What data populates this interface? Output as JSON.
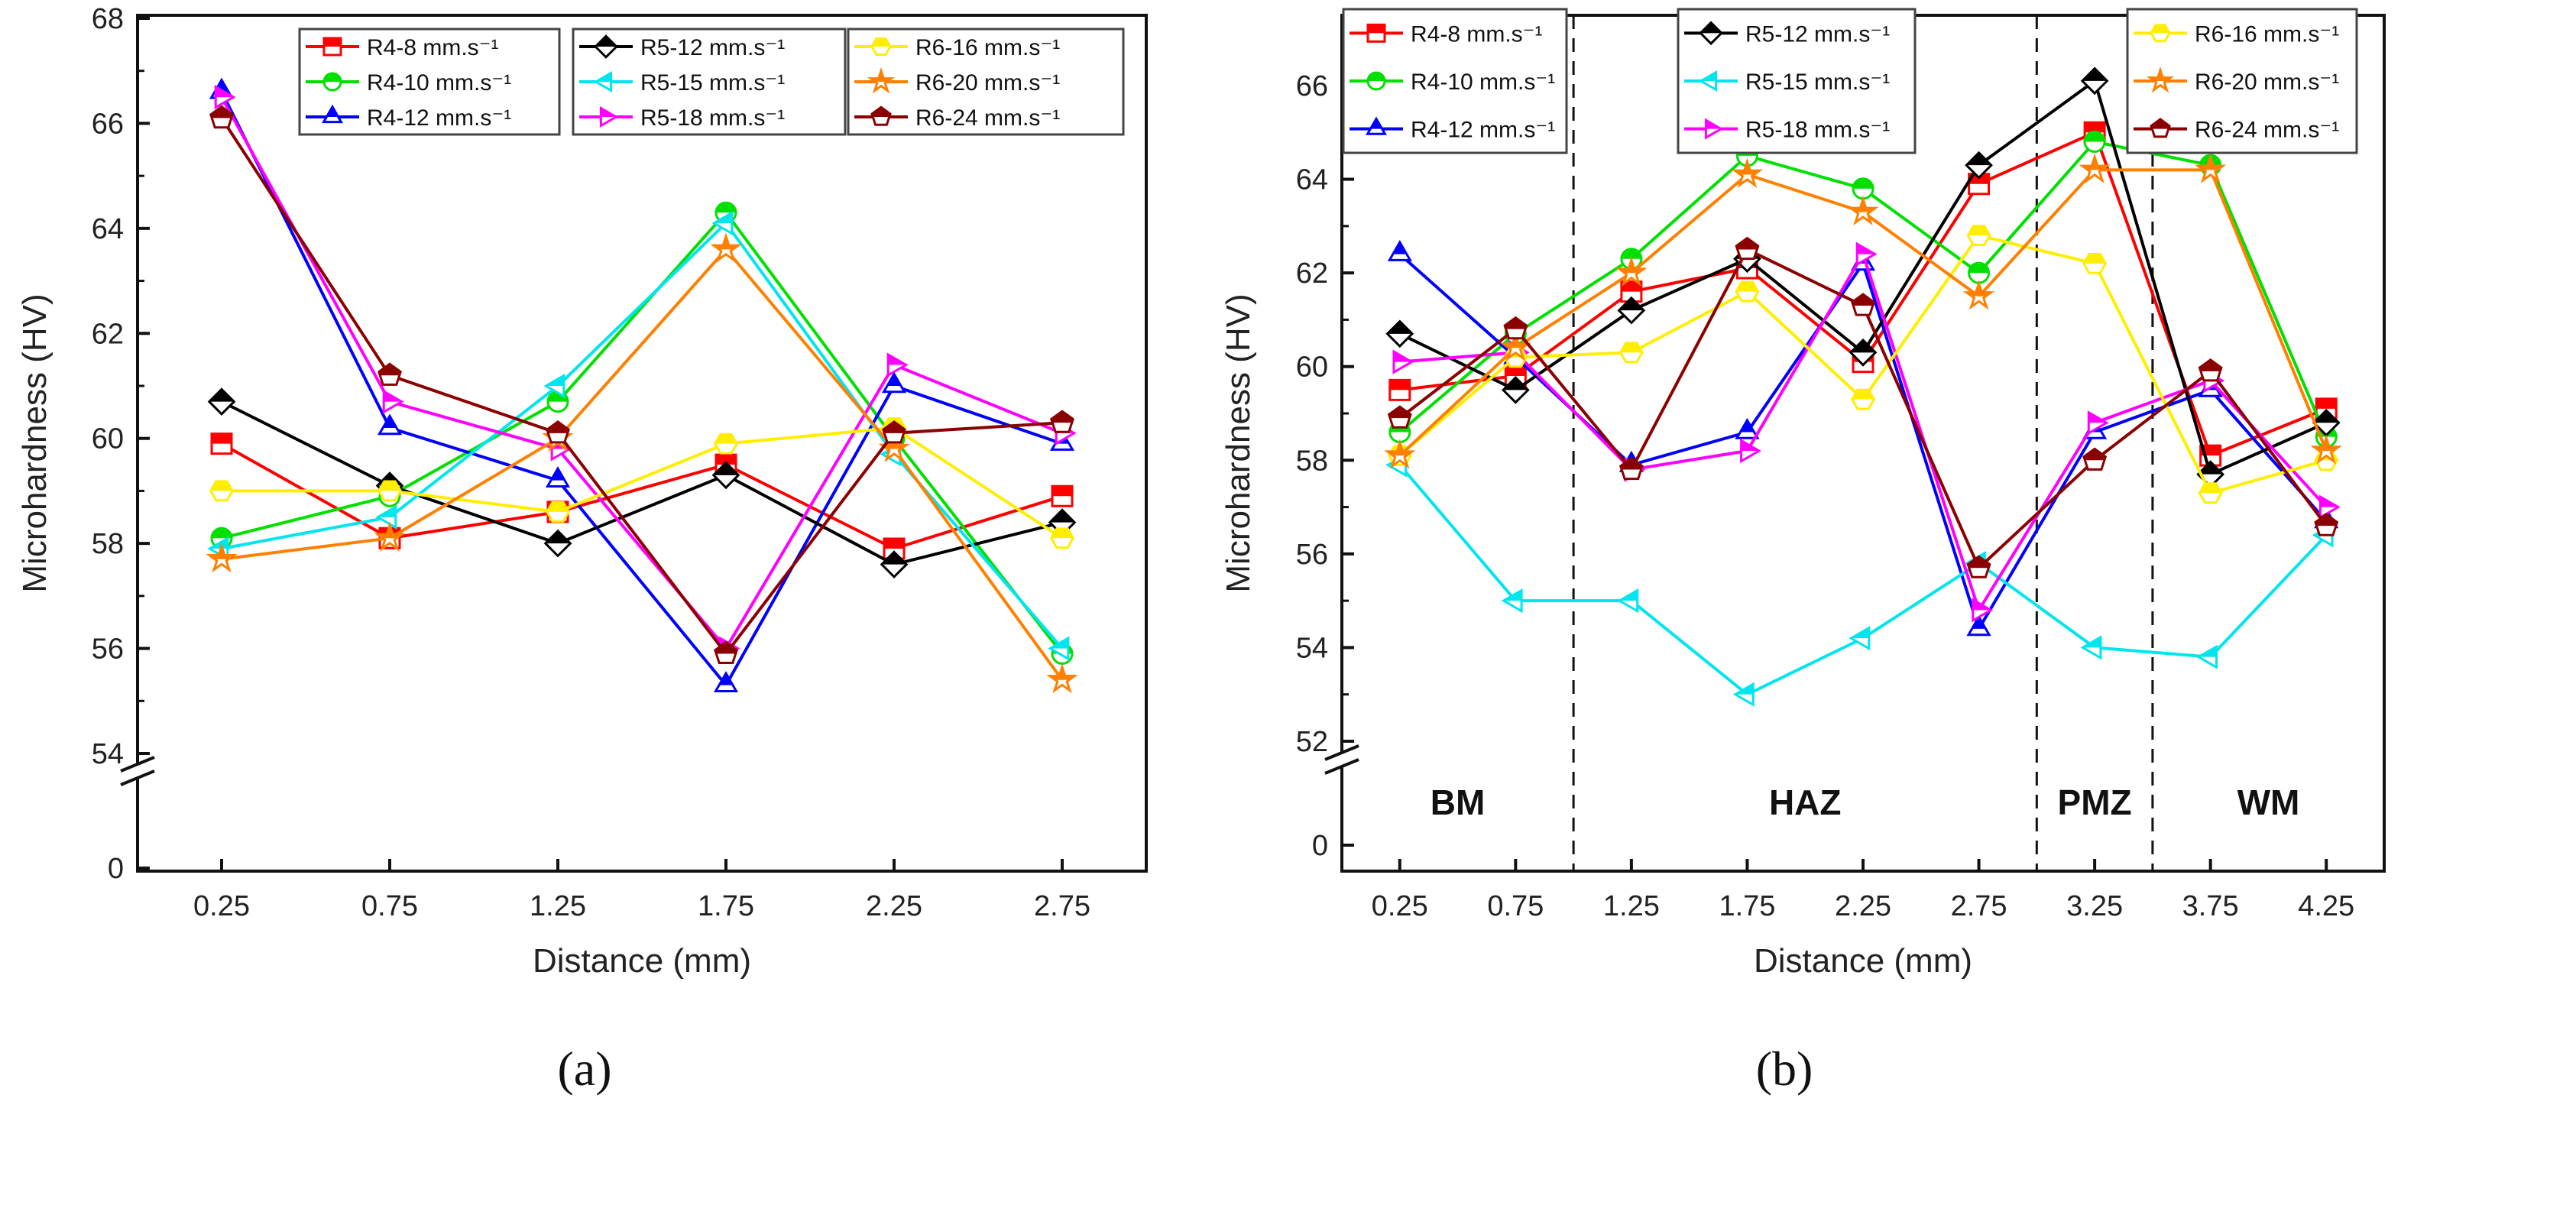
{
  "chart_data": [
    {
      "type": "line",
      "caption": "(a)",
      "xlabel": "Distance (mm)",
      "ylabel": "Microhardness (HV)",
      "x": [
        0.25,
        0.75,
        1.25,
        1.75,
        2.25,
        2.75
      ],
      "xticks": [
        "0.25",
        "0.75",
        "1.25",
        "1.75",
        "2.25",
        "2.75"
      ],
      "yticks": [
        0,
        54,
        56,
        58,
        60,
        62,
        64,
        66,
        68
      ],
      "ylim": [
        54,
        68
      ],
      "axis_break": [
        0,
        54
      ],
      "series": [
        {
          "name": "R4-8 mm.s⁻¹",
          "color": "#ff0000",
          "marker": "square",
          "values": [
            59.9,
            58.1,
            58.6,
            59.5,
            57.9,
            58.9
          ]
        },
        {
          "name": "R4-10 mm.s⁻¹",
          "color": "#00e000",
          "marker": "circle",
          "values": [
            58.1,
            58.9,
            60.7,
            64.3,
            60.0,
            55.9
          ]
        },
        {
          "name": "R4-12 mm.s⁻¹",
          "color": "#0000ff",
          "marker": "triangle-up",
          "values": [
            66.6,
            60.2,
            59.2,
            55.3,
            61.0,
            59.9
          ]
        },
        {
          "name": "R5-12 mm.s⁻¹",
          "color": "#000000",
          "marker": "diamond",
          "values": [
            60.7,
            59.1,
            58.0,
            59.3,
            57.6,
            58.4
          ]
        },
        {
          "name": "R5-15 mm.s⁻¹",
          "color": "#00e5ee",
          "marker": "triangle-left",
          "values": [
            57.9,
            58.5,
            61.0,
            64.1,
            59.7,
            56.0
          ]
        },
        {
          "name": "R5-18 mm.s⁻¹",
          "color": "#ff00ff",
          "marker": "triangle-right",
          "values": [
            66.5,
            60.7,
            59.8,
            56.0,
            61.4,
            60.1
          ]
        },
        {
          "name": "R6-16 mm.s⁻¹",
          "color": "#ffee00",
          "marker": "hexagon",
          "values": [
            59.0,
            59.0,
            58.6,
            59.9,
            60.2,
            58.1
          ]
        },
        {
          "name": "R6-20 mm.s⁻¹",
          "color": "#ff8000",
          "marker": "star",
          "values": [
            57.7,
            58.1,
            60.0,
            63.6,
            59.8,
            55.4
          ]
        },
        {
          "name": "R6-24 mm.s⁻¹",
          "color": "#8b0000",
          "marker": "pentagon",
          "values": [
            66.1,
            61.2,
            60.1,
            55.9,
            60.1,
            60.3
          ]
        }
      ]
    },
    {
      "type": "line",
      "caption": "(b)",
      "xlabel": "Distance (mm)",
      "ylabel": "Microhardness (HV)",
      "x": [
        0.25,
        0.75,
        1.25,
        1.75,
        2.25,
        2.75,
        3.25,
        3.75,
        4.25
      ],
      "xticks": [
        "0.25",
        "0.75",
        "1.25",
        "1.75",
        "2.25",
        "2.75",
        "3.25",
        "3.75",
        "4.25"
      ],
      "yticks": [
        0,
        52,
        54,
        56,
        58,
        60,
        62,
        64,
        66
      ],
      "ylim": [
        52,
        67
      ],
      "axis_break": [
        0,
        52
      ],
      "zones": [
        {
          "label": "BM",
          "from": 0,
          "to": 1.0
        },
        {
          "label": "HAZ",
          "from": 1.0,
          "to": 3.0
        },
        {
          "label": "PMZ",
          "from": 3.0,
          "to": 3.5
        },
        {
          "label": "WM",
          "from": 3.5,
          "to": 4.5
        }
      ],
      "series": [
        {
          "name": "R4-8 mm.s⁻¹",
          "color": "#ff0000",
          "marker": "square",
          "values": [
            59.5,
            59.8,
            61.6,
            62.1,
            60.1,
            63.9,
            65.0,
            58.1,
            59.1
          ]
        },
        {
          "name": "R4-10 mm.s⁻¹",
          "color": "#00e000",
          "marker": "circle",
          "values": [
            58.6,
            60.7,
            62.3,
            64.5,
            63.8,
            62.0,
            64.8,
            64.3,
            58.5
          ]
        },
        {
          "name": "R4-12 mm.s⁻¹",
          "color": "#0000ff",
          "marker": "triangle-up",
          "values": [
            62.4,
            60.2,
            57.9,
            58.6,
            62.2,
            54.4,
            58.6,
            59.5,
            56.7
          ]
        },
        {
          "name": "R5-12 mm.s⁻¹",
          "color": "#000000",
          "marker": "diamond",
          "values": [
            60.7,
            59.5,
            61.2,
            62.3,
            60.3,
            64.3,
            66.1,
            57.7,
            58.8
          ]
        },
        {
          "name": "R5-15 mm.s⁻¹",
          "color": "#00e5ee",
          "marker": "triangle-left",
          "values": [
            57.9,
            55.0,
            55.0,
            53.0,
            54.2,
            55.8,
            54.0,
            53.8,
            56.4
          ]
        },
        {
          "name": "R5-18 mm.s⁻¹",
          "color": "#ff00ff",
          "marker": "triangle-right",
          "values": [
            60.1,
            60.3,
            57.8,
            58.2,
            62.4,
            54.8,
            58.8,
            59.7,
            57.0
          ]
        },
        {
          "name": "R6-16 mm.s⁻¹",
          "color": "#ffee00",
          "marker": "hexagon",
          "values": [
            58.1,
            60.2,
            60.3,
            61.6,
            59.3,
            62.8,
            62.2,
            57.3,
            58.0
          ]
        },
        {
          "name": "R6-20 mm.s⁻¹",
          "color": "#ff8000",
          "marker": "star",
          "values": [
            58.1,
            60.4,
            62.0,
            64.1,
            63.3,
            61.5,
            64.2,
            64.2,
            58.2
          ]
        },
        {
          "name": "R6-24 mm.s⁻¹",
          "color": "#8b0000",
          "marker": "pentagon",
          "values": [
            58.9,
            60.8,
            57.8,
            62.5,
            61.3,
            55.7,
            58.0,
            59.9,
            56.6
          ]
        }
      ]
    }
  ]
}
